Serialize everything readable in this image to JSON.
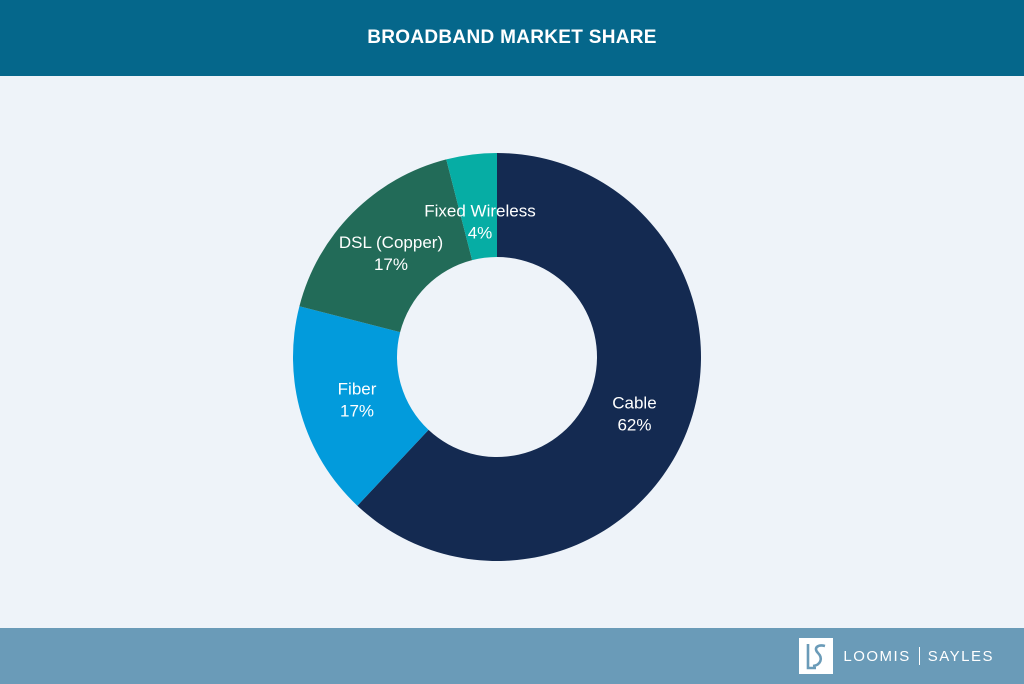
{
  "header": {
    "title": "BROADBAND MARKET SHARE"
  },
  "footer": {
    "logo": {
      "monogram": "LS",
      "word1": "LOOMIS",
      "word2": "SAYLES"
    }
  },
  "chart_data": {
    "type": "pie",
    "donut": true,
    "title": "BROADBAND MARKET SHARE",
    "slices": [
      {
        "label": "Cable",
        "value": 62,
        "value_label": "62%",
        "color": "#142a51"
      },
      {
        "label": "Fiber",
        "value": 17,
        "value_label": "17%",
        "color": "#029bdc"
      },
      {
        "label": "DSL (Copper)",
        "value": 17,
        "value_label": "17%",
        "color": "#226b58"
      },
      {
        "label": "Fixed Wireless",
        "value": 4,
        "value_label": "4%",
        "color": "#06ada4"
      }
    ],
    "start": "12 o'clock",
    "direction": "clockwise"
  },
  "colors": {
    "header_bg": "#05678b",
    "page_bg": "#eef3f9",
    "footer_bg": "#6a9bb8"
  }
}
